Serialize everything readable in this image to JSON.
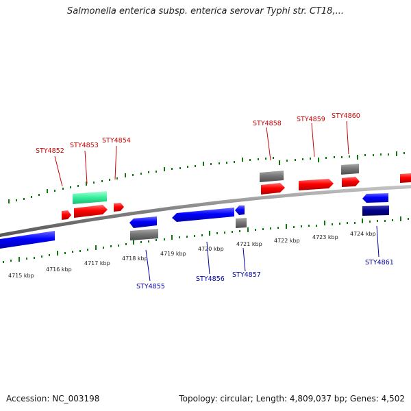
{
  "title": "Salmonella enterica subsp. enterica serovar Typhi str. CT18,...",
  "footer": {
    "accession": "Accession: NC_003198",
    "summary": "Topology: circular; Length: 4,809,037 bp; Genes: 4,502"
  },
  "colors": {
    "forward_gene": "#ff0000",
    "reverse_gene": "#0000ff",
    "forward_label": "#cc0000",
    "reverse_label": "#0000aa",
    "tick": "#0a7a0a",
    "backbone": "#808080",
    "grey_feature": "#7a7a7a",
    "teal_feature": "#33ee99",
    "navy_feature": "#00008b"
  },
  "scale_labels": [
    "4715 kbp",
    "4716 kbp",
    "4717 kbp",
    "4718 kbp",
    "4719 kbp",
    "4720 kbp",
    "4721 kbp",
    "4722 kbp",
    "4723 kbp",
    "4724 kbp"
  ],
  "forward_labels": [
    "STY4852",
    "STY4853",
    "STY4854",
    "STY4858",
    "STY4859",
    "STY4860"
  ],
  "reverse_labels": [
    "STY4855",
    "STY4856",
    "STY4857",
    "STY4861"
  ]
}
